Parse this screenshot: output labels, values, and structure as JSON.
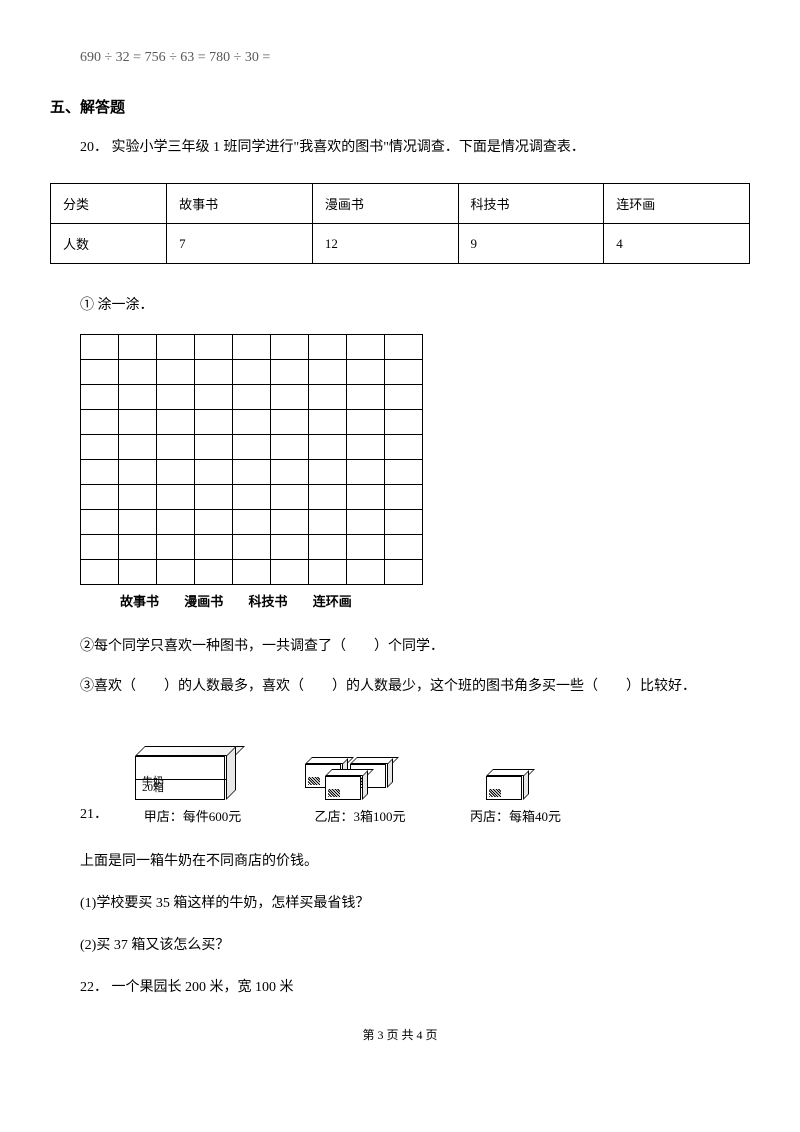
{
  "equations": "690 ÷ 32 =  756 ÷ 63 =  780 ÷ 30 =",
  "section5_title": "五、解答题",
  "q20": {
    "number": "20．",
    "text": "实验小学三年级 1 班同学进行\"我喜欢的图书\"情况调查．下面是情况调查表．",
    "table": {
      "headers": [
        "分类",
        "故事书",
        "漫画书",
        "科技书",
        "连环画"
      ],
      "row_label": "人数",
      "values": [
        "7",
        "12",
        "9",
        "4"
      ]
    },
    "sub1": "① 涂一涂．",
    "grid": {
      "rows": 10,
      "cols": 9,
      "labels": [
        "故事书",
        "漫画书",
        "科技书",
        "连环画"
      ]
    },
    "sub2": "②每个同学只喜欢一种图书，一共调查了（　　）个同学．",
    "sub3": "③喜欢（　　）的人数最多，喜欢（　　）的人数最少，这个班的图书角多买一些（　　）比较好．"
  },
  "q21": {
    "number": "21．",
    "milk_label": "牛奶",
    "box_count": "20箱",
    "shop_a": "甲店：每件600元",
    "shop_b": "乙店：3箱100元",
    "shop_c": "丙店：每箱40元",
    "intro": "上面是同一箱牛奶在不同商店的价钱。",
    "sub1": "(1)学校要买 35 箱这样的牛奶，怎样买最省钱？",
    "sub2": "(2)买 37 箱又该怎么买？"
  },
  "q22": {
    "text": "22．  一个果园长 200 米，宽 100 米"
  },
  "footer": "第 3 页 共 4 页"
}
